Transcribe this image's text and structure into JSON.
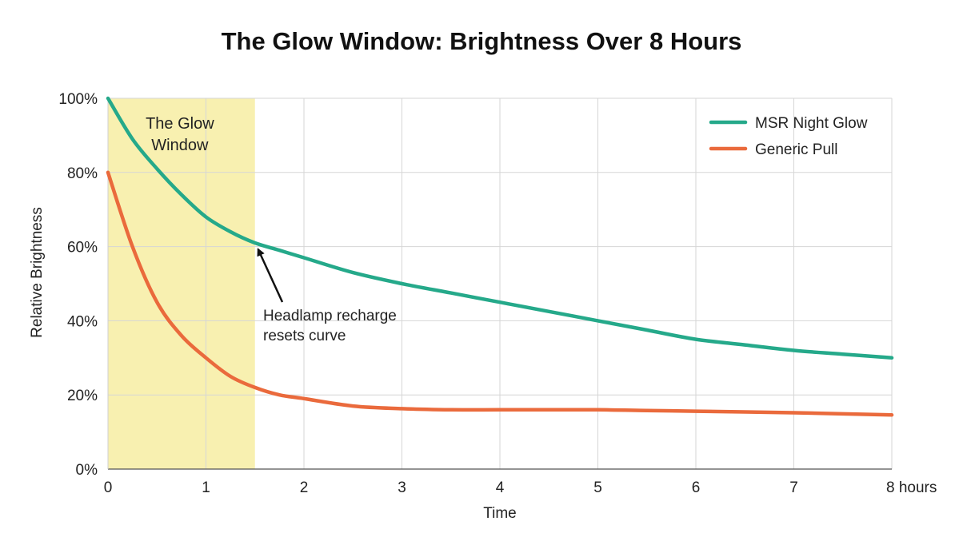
{
  "chart_data": {
    "type": "line",
    "title": "The Glow Window: Brightness Over 8 Hours",
    "xlabel": "Time",
    "ylabel": "Relative Brightness",
    "xlim": [
      0,
      8
    ],
    "ylim": [
      0,
      100
    ],
    "x_ticks": [
      "0",
      "1",
      "2",
      "3",
      "4",
      "5",
      "6",
      "7",
      "8 hours"
    ],
    "y_ticks": [
      "0%",
      "20%",
      "40%",
      "60%",
      "80%",
      "100%"
    ],
    "grid": true,
    "legend_position": "top-right",
    "highlight_band": {
      "x_start": 0,
      "x_end": 1.5,
      "label_lines": [
        "The Glow",
        "Window"
      ],
      "color": "#f8f0b0"
    },
    "annotation": {
      "text_lines": [
        "Headlamp recharge",
        "resets curve"
      ],
      "target": {
        "x": 1.5,
        "y": 61
      }
    },
    "series": [
      {
        "name": "MSR Night Glow",
        "color": "#25a98a",
        "x": [
          0,
          0.25,
          0.5,
          0.75,
          1,
          1.25,
          1.5,
          1.75,
          2,
          2.5,
          3,
          3.5,
          4,
          4.5,
          5,
          5.5,
          6,
          6.5,
          7,
          7.5,
          8
        ],
        "y": [
          100,
          89,
          81,
          74,
          68,
          64,
          61,
          59,
          57,
          53,
          50,
          47.5,
          45,
          42.5,
          40,
          37.5,
          35,
          33.5,
          32,
          31,
          30
        ]
      },
      {
        "name": "Generic Pull",
        "color": "#ea6a3c",
        "x": [
          0,
          0.25,
          0.5,
          0.75,
          1,
          1.25,
          1.5,
          1.75,
          2,
          2.5,
          3,
          3.5,
          4,
          4.5,
          5,
          5.5,
          6,
          6.5,
          7,
          7.5,
          8
        ],
        "y": [
          80,
          60,
          45,
          36,
          30,
          25,
          22,
          20,
          19,
          17,
          16.3,
          16,
          16,
          16,
          16,
          15.8,
          15.6,
          15.4,
          15.2,
          14.9,
          14.6
        ]
      }
    ]
  }
}
